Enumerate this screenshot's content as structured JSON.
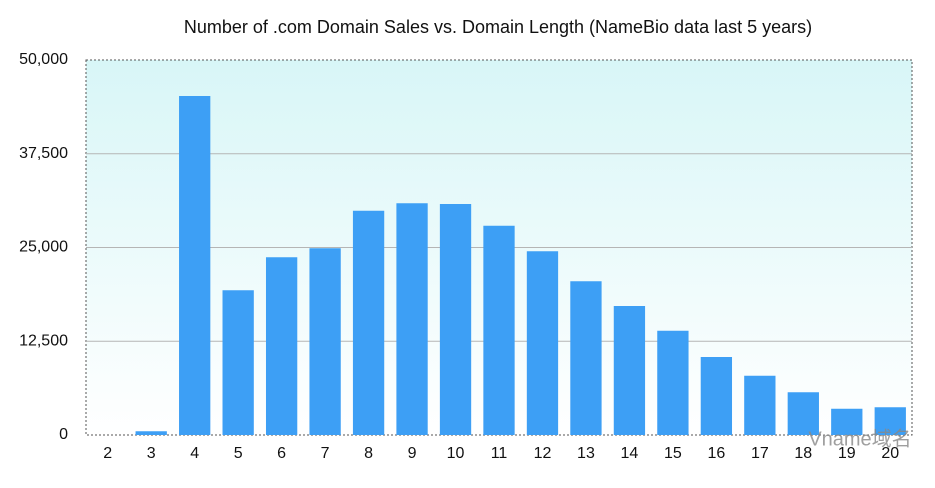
{
  "chart_data": {
    "type": "bar",
    "title": "Number of .com Domain Sales vs. Domain Length (NameBio data last 5 years)",
    "categories": [
      "2",
      "3",
      "4",
      "5",
      "6",
      "7",
      "8",
      "9",
      "10",
      "11",
      "12",
      "13",
      "14",
      "15",
      "16",
      "17",
      "18",
      "19",
      "20"
    ],
    "values": [
      0,
      500,
      45200,
      19300,
      23700,
      24900,
      29900,
      30900,
      30800,
      27900,
      24500,
      20500,
      17200,
      13900,
      10400,
      7900,
      5700,
      3500,
      3700
    ],
    "color": "#3d9ff5",
    "ylim": [
      0,
      50000
    ],
    "yticks": [
      0,
      {
        "value": 12500,
        "label": "12,500"
      },
      {
        "value": 25000,
        "label": "25,000"
      },
      {
        "value": 37500,
        "label": "37,500"
      },
      {
        "value": 50000,
        "label": "50,000"
      }
    ],
    "grid": true,
    "watermark": "Vname域名"
  }
}
